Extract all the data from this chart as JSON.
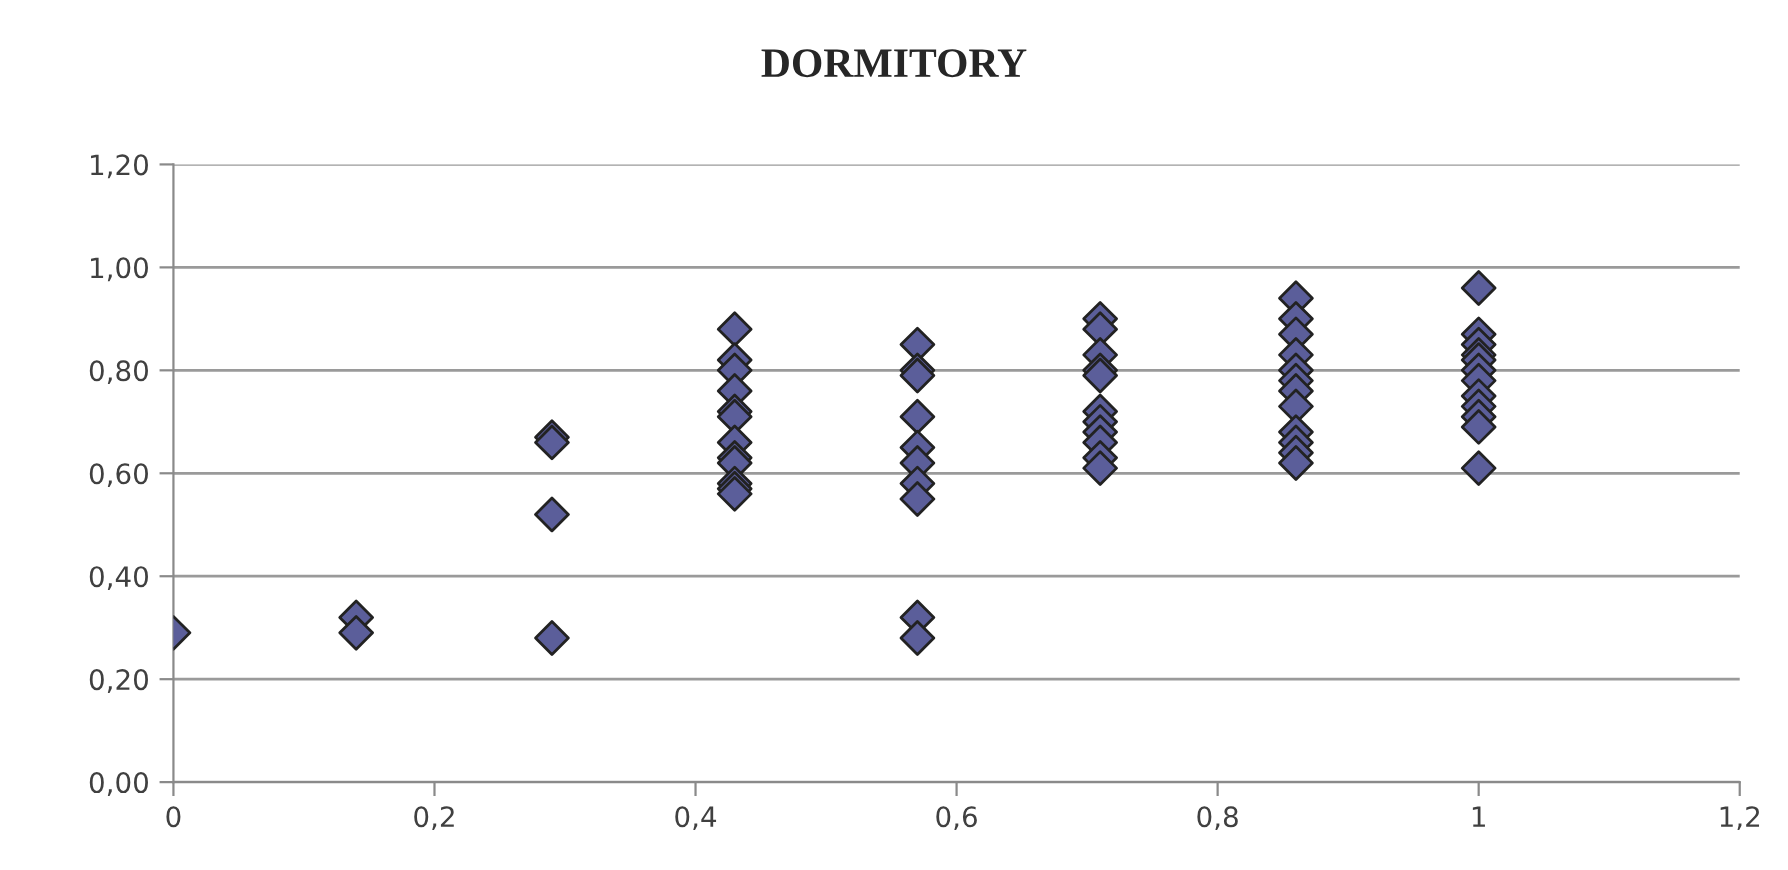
{
  "chart_data": {
    "type": "scatter",
    "title": "DORMITORY",
    "series": [
      {
        "color": "#5b5e9a",
        "x": [
          0,
          0.14,
          0.14,
          0.29,
          0.29,
          0.29,
          0.29,
          0.43,
          0.43,
          0.43,
          0.43,
          0.43,
          0.43,
          0.43,
          0.43,
          0.43,
          0.43,
          0.43,
          0.43,
          0.57,
          0.57,
          0.57,
          0.57,
          0.57,
          0.57,
          0.57,
          0.57,
          0.57,
          0.57,
          0.71,
          0.71,
          0.71,
          0.71,
          0.71,
          0.71,
          0.71,
          0.71,
          0.71,
          0.71,
          0.71,
          0.86,
          0.86,
          0.86,
          0.86,
          0.86,
          0.86,
          0.86,
          0.86,
          0.86,
          0.86,
          0.86,
          0.86,
          1,
          1,
          1,
          1,
          1,
          1,
          1,
          1,
          1,
          1,
          1,
          1
        ],
        "values": [
          0.29,
          0.32,
          0.29,
          0.67,
          0.66,
          0.52,
          0.28,
          0.88,
          0.82,
          0.8,
          0.76,
          0.72,
          0.71,
          0.66,
          0.63,
          0.62,
          0.58,
          0.57,
          0.56,
          0.85,
          0.8,
          0.79,
          0.71,
          0.65,
          0.62,
          0.58,
          0.55,
          0.32,
          0.28,
          0.9,
          0.88,
          0.83,
          0.8,
          0.79,
          0.72,
          0.7,
          0.68,
          0.66,
          0.63,
          0.61,
          0.94,
          0.9,
          0.87,
          0.83,
          0.8,
          0.78,
          0.76,
          0.73,
          0.68,
          0.66,
          0.64,
          0.62,
          0.96,
          0.87,
          0.85,
          0.83,
          0.82,
          0.8,
          0.78,
          0.75,
          0.73,
          0.71,
          0.69,
          0.61
        ]
      }
    ],
    "xlim": [
      0,
      1.2
    ],
    "xticks": [
      {
        "value": 0,
        "label": "0"
      },
      {
        "value": 0.2,
        "label": "0,2"
      },
      {
        "value": 0.4,
        "label": "0,4"
      },
      {
        "value": 0.6,
        "label": "0,6"
      },
      {
        "value": 0.8,
        "label": "0,8"
      },
      {
        "value": 1,
        "label": "1"
      },
      {
        "value": 1.2,
        "label": "1,2"
      }
    ],
    "ylim": [
      0,
      1.2
    ],
    "yticks": [
      {
        "value": 0,
        "label": "0,00"
      },
      {
        "value": 0.2,
        "label": "0,20"
      },
      {
        "value": 0.4,
        "label": "0,40"
      },
      {
        "value": 0.6,
        "label": "0,60"
      },
      {
        "value": 0.8,
        "label": "0,80"
      },
      {
        "value": 1.0,
        "label": "1,00"
      },
      {
        "value": 1.2,
        "label": "1,20"
      }
    ],
    "grid": "y",
    "marker": "diamond"
  }
}
